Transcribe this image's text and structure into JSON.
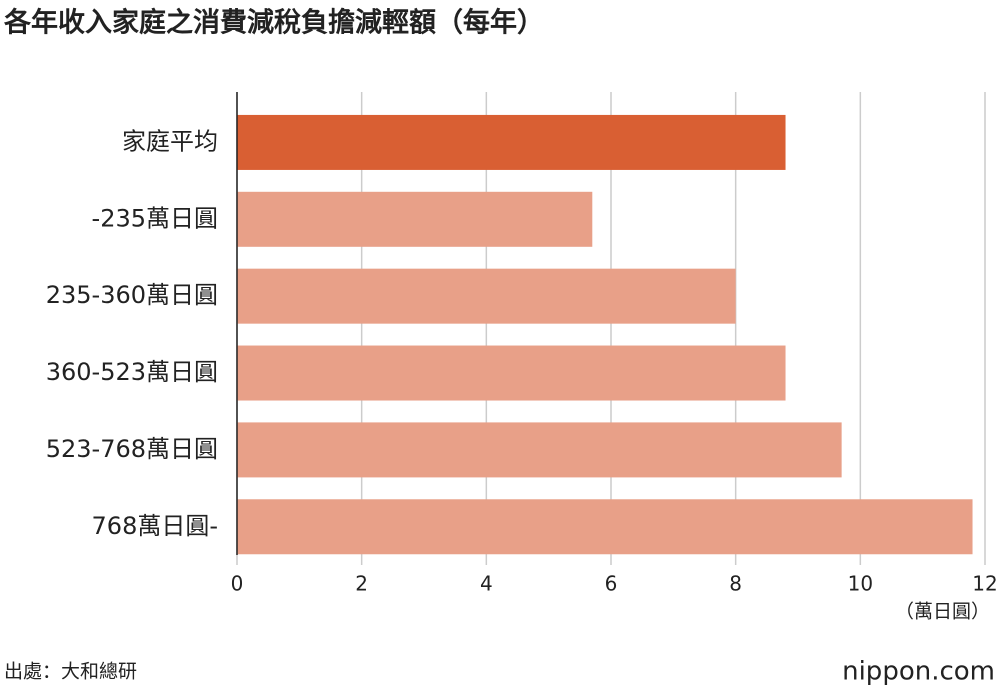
{
  "chart_data": {
    "type": "barh",
    "title": "各年收入家庭之消費減稅負擔減輕額（每年）",
    "categories": [
      "家庭平均",
      "-235萬日圓",
      "235-360萬日圓",
      "360-523萬日圓",
      "523-768萬日圓",
      "768萬日圓-"
    ],
    "values": [
      8.8,
      5.7,
      8.0,
      8.8,
      9.7,
      11.8
    ],
    "colors": [
      "#d95f33",
      "#e8a088",
      "#e8a088",
      "#e8a088",
      "#e8a088",
      "#e8a088"
    ],
    "xlim": [
      0,
      12
    ],
    "xticks": [
      0,
      2,
      4,
      6,
      8,
      10,
      12
    ],
    "grid": true,
    "x_unit": "（萬日圓）",
    "source": "出處：大和總研",
    "brand": "nippon.com"
  }
}
